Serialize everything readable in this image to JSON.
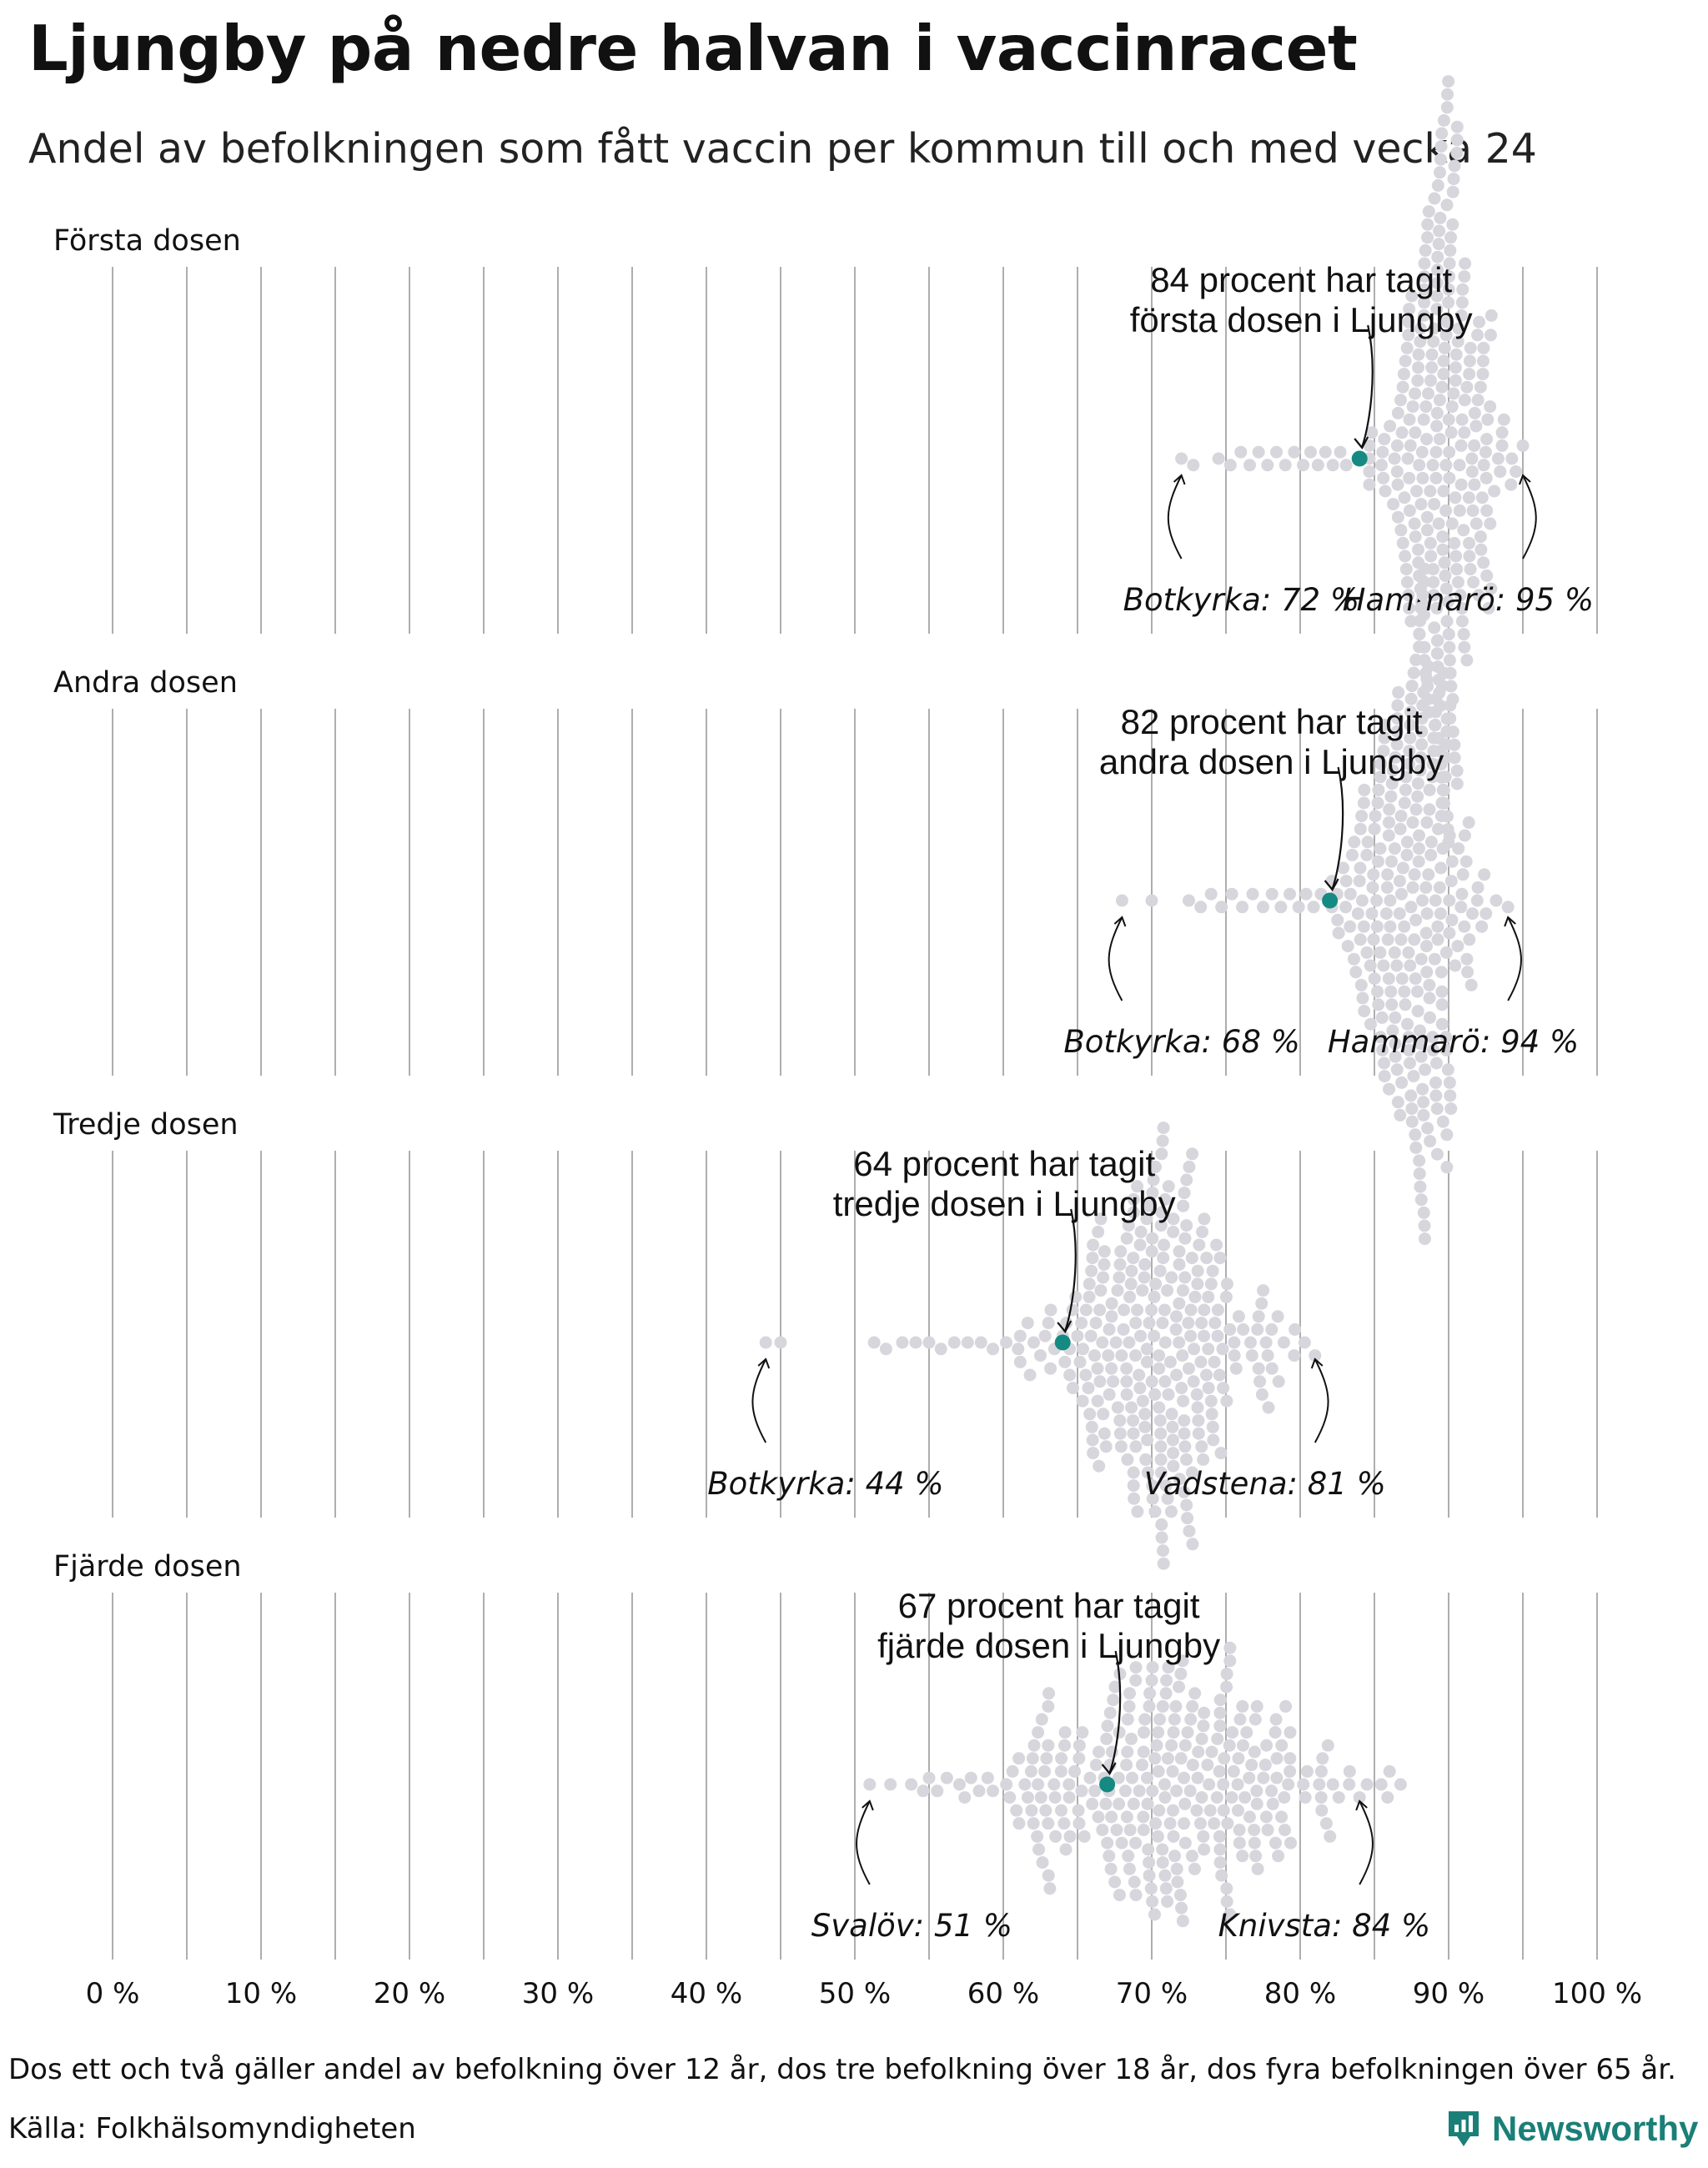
{
  "title": "Ljungby på nedre halvan i vaccinracet",
  "subtitle": "Andel av befolkningen som fått vaccin per kommun till och med vecka 24",
  "note": "Dos ett och två gäller andel av befolkning över 12 år, dos tre befolkning över 18 år, dos fyra befolkningen över 65 år.",
  "source": "Källa: Folkhälsomyndigheten",
  "brand": "Newsworthy",
  "colors": {
    "highlight": "#158a82",
    "dots": "#d7d6dc",
    "grid": "#9a9a9a",
    "brand": "#1a7f78"
  },
  "chart_data": {
    "type": "beeswarm",
    "xlim": [
      0,
      100
    ],
    "xticks": [
      0,
      10,
      20,
      30,
      40,
      50,
      60,
      70,
      80,
      90,
      100
    ],
    "xtick_labels": [
      "0 %",
      "10 %",
      "20 %",
      "30 %",
      "40 %",
      "50 %",
      "60 %",
      "70 %",
      "80 %",
      "90 %",
      "100 %"
    ],
    "panels": [
      {
        "label": "Första dosen",
        "highlight": {
          "name": "Ljungby",
          "value": 84,
          "text": [
            "84 procent har tagit",
            "första dosen i Ljungby"
          ]
        },
        "min": {
          "name": "Botkyrka",
          "value": 72,
          "text": "Botkyrka: 72 %"
        },
        "max": {
          "name": "Hammarö",
          "value": 95,
          "text": "Hammarö: 95 %"
        },
        "distribution": {
          "count": 290,
          "mean": 89.6,
          "sd": 1.9,
          "tail_low": [
            72.0,
            72.8,
            74.5,
            75.3,
            76.0,
            76.6,
            77.2,
            77.8,
            78.4,
            79.0,
            79.6,
            80.2,
            80.7,
            81.2,
            81.7,
            82.2,
            82.7,
            83.1
          ],
          "tail_high": [
            93.6,
            94.2,
            95.0
          ]
        }
      },
      {
        "label": "Andra dosen",
        "highlight": {
          "name": "Ljungby",
          "value": 82,
          "text": [
            "82 procent har tagit",
            "andra dosen i Ljungby"
          ]
        },
        "min": {
          "name": "Botkyrka",
          "value": 68,
          "text": "Botkyrka: 68 %"
        },
        "max": {
          "name": "Hammarö",
          "value": 94,
          "text": "Hammarö: 94 %"
        },
        "distribution": {
          "count": 290,
          "mean": 87.6,
          "sd": 2.1,
          "tail_low": [
            68.0,
            70.0,
            72.5,
            73.3,
            74.0,
            74.7,
            75.4,
            76.1,
            76.8,
            77.5,
            78.1,
            78.7,
            79.3,
            79.9,
            80.4,
            80.9,
            81.4
          ],
          "tail_high": [
            92.4,
            93.2,
            94.0
          ]
        }
      },
      {
        "label": "Tredje dosen",
        "highlight": {
          "name": "Ljungby",
          "value": 64,
          "text": [
            "64 procent har tagit",
            "tredje dosen i Ljungby"
          ]
        },
        "min": {
          "name": "Botkyrka",
          "value": 44,
          "text": "Botkyrka: 44 %"
        },
        "max": {
          "name": "Vadstena",
          "value": 81,
          "text": "Vadstena: 81 %"
        },
        "distribution": {
          "count": 290,
          "mean": 70.5,
          "sd": 3.6,
          "tail_low": [
            44.0,
            45.0,
            51.3,
            52.1,
            53.2,
            54.1,
            55.0,
            55.8,
            56.7,
            57.6,
            58.5,
            59.3,
            60.2,
            61.0,
            61.8,
            62.5,
            63.2
          ],
          "tail_high": [
            77.4,
            78.1,
            78.9,
            79.6,
            80.3,
            81.0
          ]
        }
      },
      {
        "label": "Fjärde dosen",
        "highlight": {
          "name": "Ljungby",
          "value": 67,
          "text": [
            "67 procent har tagit",
            "fjärde dosen i Ljungby"
          ]
        },
        "min": {
          "name": "Svalöv",
          "value": 51,
          "text": "Svalöv: 51 %"
        },
        "max": {
          "name": "Knivsta",
          "value": 84,
          "text": "Knivsta: 84 %"
        },
        "distribution": {
          "count": 290,
          "mean": 71.0,
          "sd": 6.4,
          "tail_low": [
            51.0,
            52.4,
            53.8,
            55.0,
            56.2,
            57.4
          ],
          "tail_high": [
            82.6,
            83.3,
            84.0
          ]
        }
      }
    ]
  }
}
